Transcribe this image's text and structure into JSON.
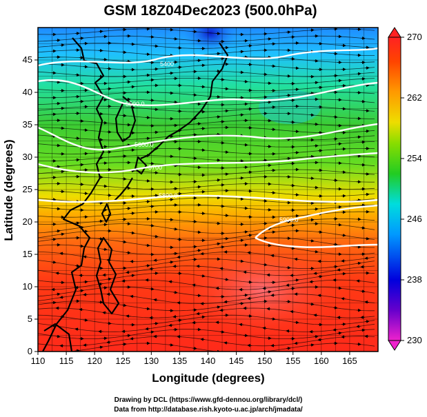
{
  "title": "GSM 18Z04Dec2023 (500.0hPa)",
  "xlabel": "Longitude (degrees)",
  "ylabel": "Latitude  (degrees)",
  "xticks": [
    "110",
    "115",
    "120",
    "125",
    "130",
    "135",
    "140",
    "145",
    "150",
    "155",
    "160",
    "165"
  ],
  "yticks": [
    "0",
    "5",
    "10",
    "15",
    "20",
    "25",
    "30",
    "35",
    "40",
    "45"
  ],
  "colorbar": {
    "ticks": [
      "230",
      "238",
      "246",
      "254",
      "262",
      "270"
    ],
    "min": 230,
    "max": 270
  },
  "contour_labels": [
    "5400",
    "5500.0",
    "5600.0",
    "5700",
    "5800.0",
    "5900.0"
  ],
  "credits": [
    "Drawing by DCL (https://www.gfd-dennou.org/library/dcl/)",
    "Data from http://database.rish.kyoto-u.ac.jp/arch/jmadata/"
  ],
  "colors": {
    "temp_low": "#1a1aff",
    "temp_mid": "#22cc22",
    "temp_high": "#ff2200",
    "contour": "#ffffff",
    "coast": "#000000"
  },
  "chart_data": {
    "type": "heatmap",
    "title": "GSM 18Z04Dec2023 (500.0hPa)",
    "xlabel": "Longitude (degrees)",
    "ylabel": "Latitude  (degrees)",
    "xlim": [
      110,
      170
    ],
    "ylim": [
      0,
      50
    ],
    "zlim": [
      230,
      270
    ],
    "variable_overlays": [
      "temperature (shaded)",
      "geopotential height (white contours)",
      "wind streamlines"
    ],
    "contour_levels": [
      5400,
      5500,
      5600,
      5700,
      5800,
      5900
    ]
  }
}
